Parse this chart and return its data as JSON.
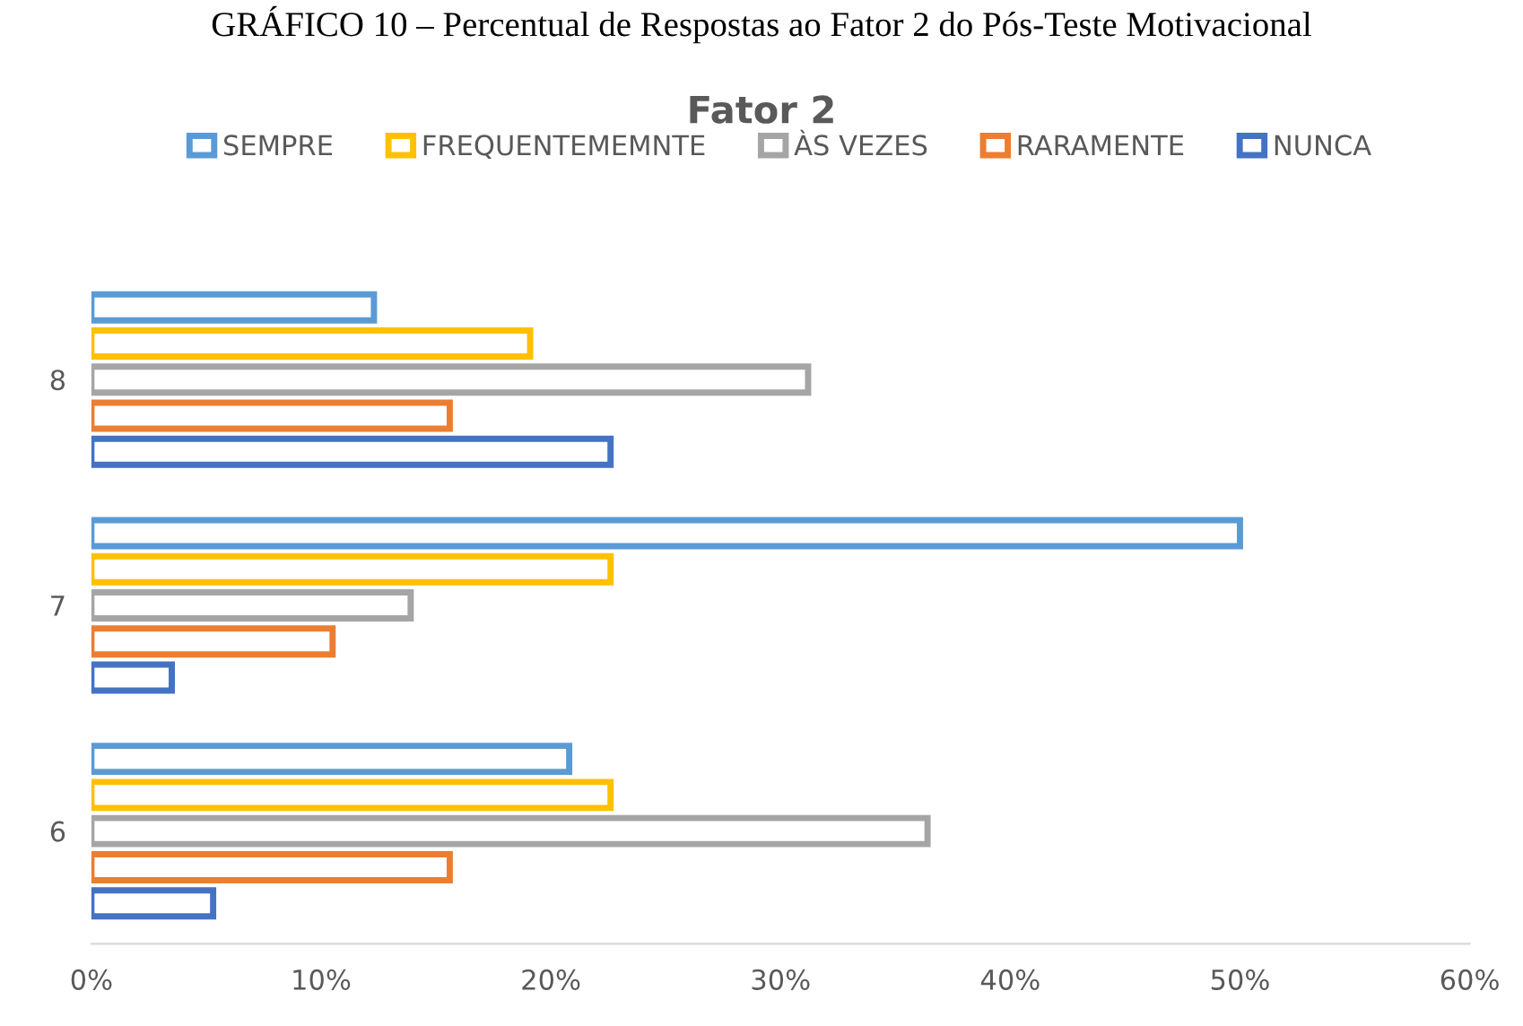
{
  "chart_data": {
    "type": "bar",
    "orientation": "horizontal",
    "title": "Fator 2",
    "annotations": [
      "GRÁFICO 10 – Percentual de Respostas ao Fator 2 do Pós-Teste Motivacional"
    ],
    "categories": [
      "8",
      "7",
      "6"
    ],
    "series": [
      {
        "name": "SEMPRE",
        "color": "#5b9bd5",
        "values": [
          12.3,
          50,
          20.8
        ]
      },
      {
        "name": "FREQUENTEMEMNTE",
        "color": "#ffc000",
        "values": [
          19.1,
          22.6,
          22.6
        ]
      },
      {
        "name": "ÀS VEZES",
        "color": "#a5a5a5",
        "values": [
          31.2,
          13.9,
          36.4
        ]
      },
      {
        "name": "RARAMENTE",
        "color": "#ed7d31",
        "values": [
          15.6,
          10.5,
          15.6
        ]
      },
      {
        "name": "NUNCA",
        "color": "#4472c4",
        "values": [
          22.6,
          3.5,
          5.3
        ]
      }
    ],
    "xlim": [
      0,
      60
    ],
    "xticks": [
      {
        "value": 0,
        "label": "0%"
      },
      {
        "value": 10,
        "label": "10%"
      },
      {
        "value": 20,
        "label": "20%"
      },
      {
        "value": 30,
        "label": "30%"
      },
      {
        "value": 40,
        "label": "40%"
      },
      {
        "value": 50,
        "label": "50%"
      },
      {
        "value": 60,
        "label": "60%"
      }
    ],
    "legend": "top",
    "grid": false
  }
}
